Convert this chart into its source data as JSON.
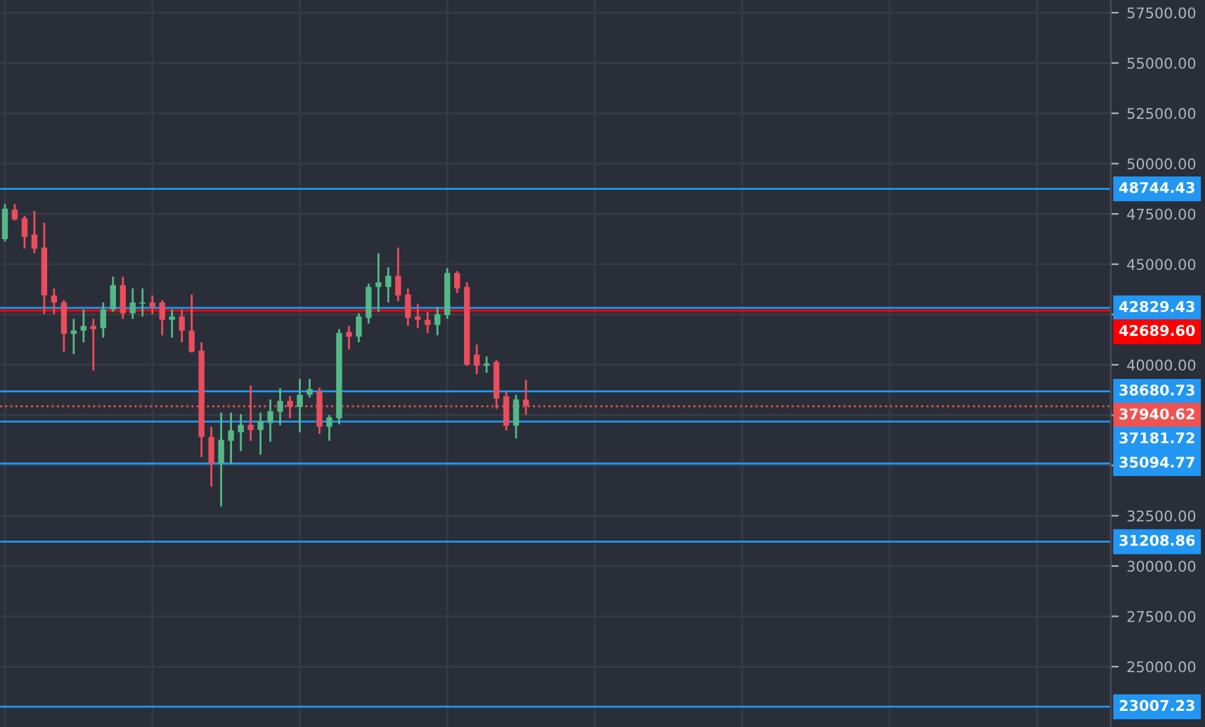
{
  "chart_data": {
    "type": "candlestick",
    "categories": [
      null,
      null,
      null,
      null,
      null,
      null,
      null,
      null,
      null,
      null,
      null,
      null,
      null,
      null,
      null,
      null,
      null,
      null,
      null,
      null,
      null,
      null,
      null,
      null,
      null,
      null,
      null,
      null,
      null,
      null,
      null,
      null,
      null,
      null,
      null,
      null,
      null,
      null,
      null,
      null,
      null,
      null,
      null,
      null,
      null,
      null,
      null,
      null,
      null,
      null,
      null,
      null,
      null,
      null,
      null,
      null,
      null,
      null,
      null,
      null,
      null,
      null,
      null,
      null,
      null,
      null,
      null,
      null,
      null,
      null,
      null,
      null,
      null,
      null,
      null,
      null,
      null,
      null,
      null,
      null,
      null,
      null,
      null,
      null,
      null,
      null,
      null,
      null,
      null,
      null,
      null,
      null,
      null,
      null,
      null,
      null,
      null,
      null,
      null,
      null,
      null,
      null,
      null,
      null,
      null,
      null,
      null,
      null,
      null,
      null,
      null,
      null,
      null
    ],
    "ohlc": [
      [
        46244,
        47990,
        46128,
        47759
      ],
      [
        47712,
        47990,
        47176,
        47222
      ],
      [
        47292,
        47409,
        45778,
        46360
      ],
      [
        46477,
        47642,
        45545,
        45778
      ],
      [
        45825,
        47060,
        42516,
        43448
      ],
      [
        43448,
        43797,
        42516,
        43098
      ],
      [
        43098,
        43215,
        40652,
        41537
      ],
      [
        41537,
        42283,
        40536,
        41700
      ],
      [
        41700,
        42749,
        41118,
        41933
      ],
      [
        41933,
        42283,
        39720,
        41770
      ],
      [
        41817,
        43098,
        41351,
        42749
      ],
      [
        42749,
        44380,
        42633,
        43960
      ],
      [
        43960,
        44380,
        42283,
        42563
      ],
      [
        42563,
        43797,
        42283,
        43098
      ],
      [
        43040,
        43797,
        42400,
        43098
      ],
      [
        43098,
        43448,
        42516,
        42866
      ],
      [
        43098,
        43215,
        41467,
        42237
      ],
      [
        42237,
        42749,
        41351,
        42400
      ],
      [
        42400,
        42749,
        41118,
        41700
      ],
      [
        41700,
        43495,
        40606,
        40652
      ],
      [
        40700,
        41118,
        35413,
        36411
      ],
      [
        36411,
        36923,
        33942,
        35107
      ],
      [
        35107,
        37623,
        32963,
        36272
      ],
      [
        36225,
        37623,
        35060,
        36738
      ],
      [
        36644,
        37554,
        35713,
        37017
      ],
      [
        37017,
        38974,
        36225,
        36761
      ],
      [
        36761,
        37623,
        35527,
        37204
      ],
      [
        37110,
        38276,
        36178,
        37693
      ],
      [
        37670,
        38834,
        36994,
        38205
      ],
      [
        38205,
        38439,
        37343,
        37903
      ],
      [
        37903,
        39300,
        36644,
        38509
      ],
      [
        38509,
        39300,
        38369,
        38788
      ],
      [
        38672,
        38858,
        36575,
        36924
      ],
      [
        36924,
        37507,
        36225,
        37390
      ],
      [
        37343,
        41770,
        37040,
        41584
      ],
      [
        41631,
        41933,
        40769,
        41398
      ],
      [
        41398,
        42563,
        41118,
        42400
      ],
      [
        42330,
        44030,
        42050,
        43867
      ],
      [
        43867,
        45545,
        42633,
        44100
      ],
      [
        43867,
        44846,
        43098,
        44426
      ],
      [
        44426,
        45825,
        43168,
        43448
      ],
      [
        43495,
        43797,
        41933,
        42330
      ],
      [
        42400,
        43028,
        41817,
        42237
      ],
      [
        42237,
        42633,
        41584,
        41980
      ],
      [
        41980,
        42866,
        41467,
        42516
      ],
      [
        42470,
        44799,
        42283,
        44566
      ],
      [
        44566,
        44660,
        43565,
        43797
      ],
      [
        43867,
        44100,
        39953,
        40000
      ],
      [
        40512,
        41002,
        39534,
        39953
      ],
      [
        39953,
        40419,
        39604,
        40070
      ],
      [
        40140,
        40233,
        37810,
        38322
      ],
      [
        38439,
        38672,
        36738,
        36971
      ],
      [
        36971,
        38509,
        36342,
        38276
      ],
      [
        38276,
        39254,
        37507,
        37950
      ],
      null,
      null,
      null,
      null,
      null,
      null,
      null,
      null,
      null,
      null,
      null,
      null,
      null,
      null,
      null,
      null,
      null,
      null,
      null,
      null,
      null,
      null,
      null,
      null,
      null,
      null,
      null,
      null,
      null,
      null,
      null,
      null,
      null,
      null,
      null,
      null,
      null,
      null,
      null,
      null,
      null,
      null,
      null,
      null,
      null,
      null,
      null,
      null,
      null,
      null,
      null,
      null,
      null,
      null,
      null,
      null,
      null,
      null,
      null
    ],
    "colors": [
      "#53b987",
      "#eb4d5c",
      "#eb4d5c",
      "#eb4d5c",
      "#eb4d5c",
      "#eb4d5c",
      "#eb4d5c",
      "#53b987",
      "#53b987",
      "#eb4d5c",
      "#53b987",
      "#53b987",
      "#eb4d5c",
      "#53b987",
      "#53b987",
      "#eb4d5c",
      "#eb4d5c",
      "#53b987",
      "#eb4d5c",
      "#eb4d5c",
      "#eb4d5c",
      "#eb4d5c",
      "#53b987",
      "#53b987",
      "#53b987",
      "#eb4d5c",
      "#53b987",
      "#53b987",
      "#53b987",
      "#eb4d5c",
      "#53b987",
      "#53b987",
      "#eb4d5c",
      "#53b987",
      "#53b987",
      "#eb4d5c",
      "#53b987",
      "#53b987",
      "#53b987",
      "#53b987",
      "#eb4d5c",
      "#eb4d5c",
      "#eb4d5c",
      "#eb4d5c",
      "#53b987",
      "#53b987",
      "#eb4d5c",
      "#eb4d5c",
      "#eb4d5c",
      "#53b987",
      "#eb4d5c",
      "#eb4d5c",
      "#53b987",
      "#eb4d5c",
      null,
      null,
      null,
      null,
      null,
      null,
      null,
      null,
      null,
      null,
      null,
      null,
      null,
      null,
      null,
      null,
      null,
      null,
      null,
      null,
      null,
      null,
      null,
      null,
      null,
      null,
      null,
      null,
      null,
      null,
      null,
      null,
      null,
      null,
      null,
      null,
      null,
      null,
      null,
      null,
      null,
      null,
      null,
      null,
      null,
      null,
      null,
      null,
      null,
      null,
      null,
      null,
      null,
      null,
      null,
      null,
      null,
      null,
      null
    ],
    "ylim": [
      22000,
      58130
    ],
    "yticks": [
      {
        "value": 25000,
        "label": "25000.00"
      },
      {
        "value": 27500,
        "label": "27500.00"
      },
      {
        "value": 30000,
        "label": "30000.00"
      },
      {
        "value": 32500,
        "label": "32500.00"
      },
      {
        "value": 35000,
        "label": null
      },
      {
        "value": 37500,
        "label": null
      },
      {
        "value": 40000,
        "label": "40000.00"
      },
      {
        "value": 42500,
        "label": null
      },
      {
        "value": 45000,
        "label": "45000.00"
      },
      {
        "value": 47500,
        "label": "47500.00"
      },
      {
        "value": 50000,
        "label": "50000.00"
      },
      {
        "value": 52500,
        "label": "52500.00"
      },
      {
        "value": 55000,
        "label": "55000.00"
      },
      {
        "value": 57500,
        "label": "57500.00"
      }
    ],
    "ref_lines": [
      {
        "axis": "y",
        "value": 48744.43,
        "label": "48744.43",
        "color": "#2196f3"
      },
      {
        "axis": "y",
        "value": 42829.43,
        "label": "42829.43",
        "color": "#2196f3"
      },
      {
        "axis": "y",
        "value": 42689.6,
        "label": "42689.60",
        "color": "#ff0000"
      },
      {
        "axis": "y",
        "value": 38680.73,
        "label": "38680.73",
        "color": "#2196f3"
      },
      {
        "axis": "y",
        "value": 37940.62,
        "label": "37940.62",
        "color": "#ef5350",
        "line_style": "dotted"
      },
      {
        "axis": "y",
        "value": 37181.72,
        "label": "37181.72",
        "color": "#2196f3"
      },
      {
        "axis": "y",
        "value": 35094.77,
        "label": "35094.77",
        "color": "#2196f3"
      },
      {
        "axis": "y",
        "value": 31208.86,
        "label": "31208.86",
        "color": "#2196f3"
      },
      {
        "axis": "y",
        "value": 23007.23,
        "label": "23007.23",
        "color": "#2196f3"
      }
    ],
    "grid": true
  }
}
